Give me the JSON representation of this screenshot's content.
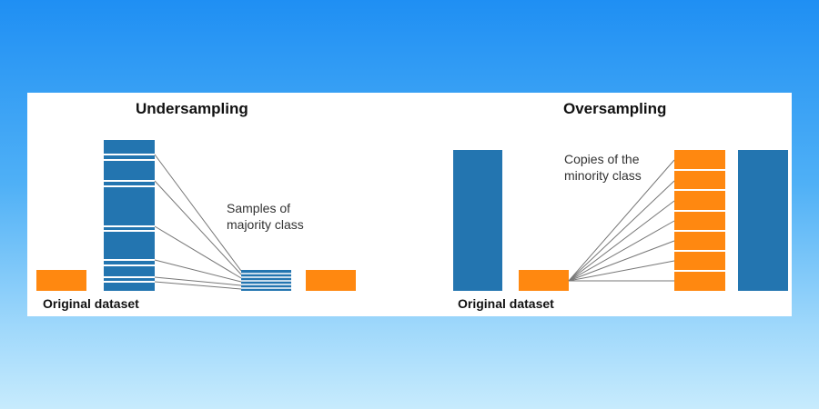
{
  "undersampling": {
    "title": "Undersampling",
    "caption": "Original dataset",
    "note_line1": "Samples of",
    "note_line2": "majority class"
  },
  "oversampling": {
    "title": "Oversampling",
    "caption": "Original dataset",
    "note_line1": "Copies of the",
    "note_line2": "minority class"
  },
  "colors": {
    "majority": "#2375b0",
    "minority": "#ff8810",
    "connector": "#777777"
  }
}
